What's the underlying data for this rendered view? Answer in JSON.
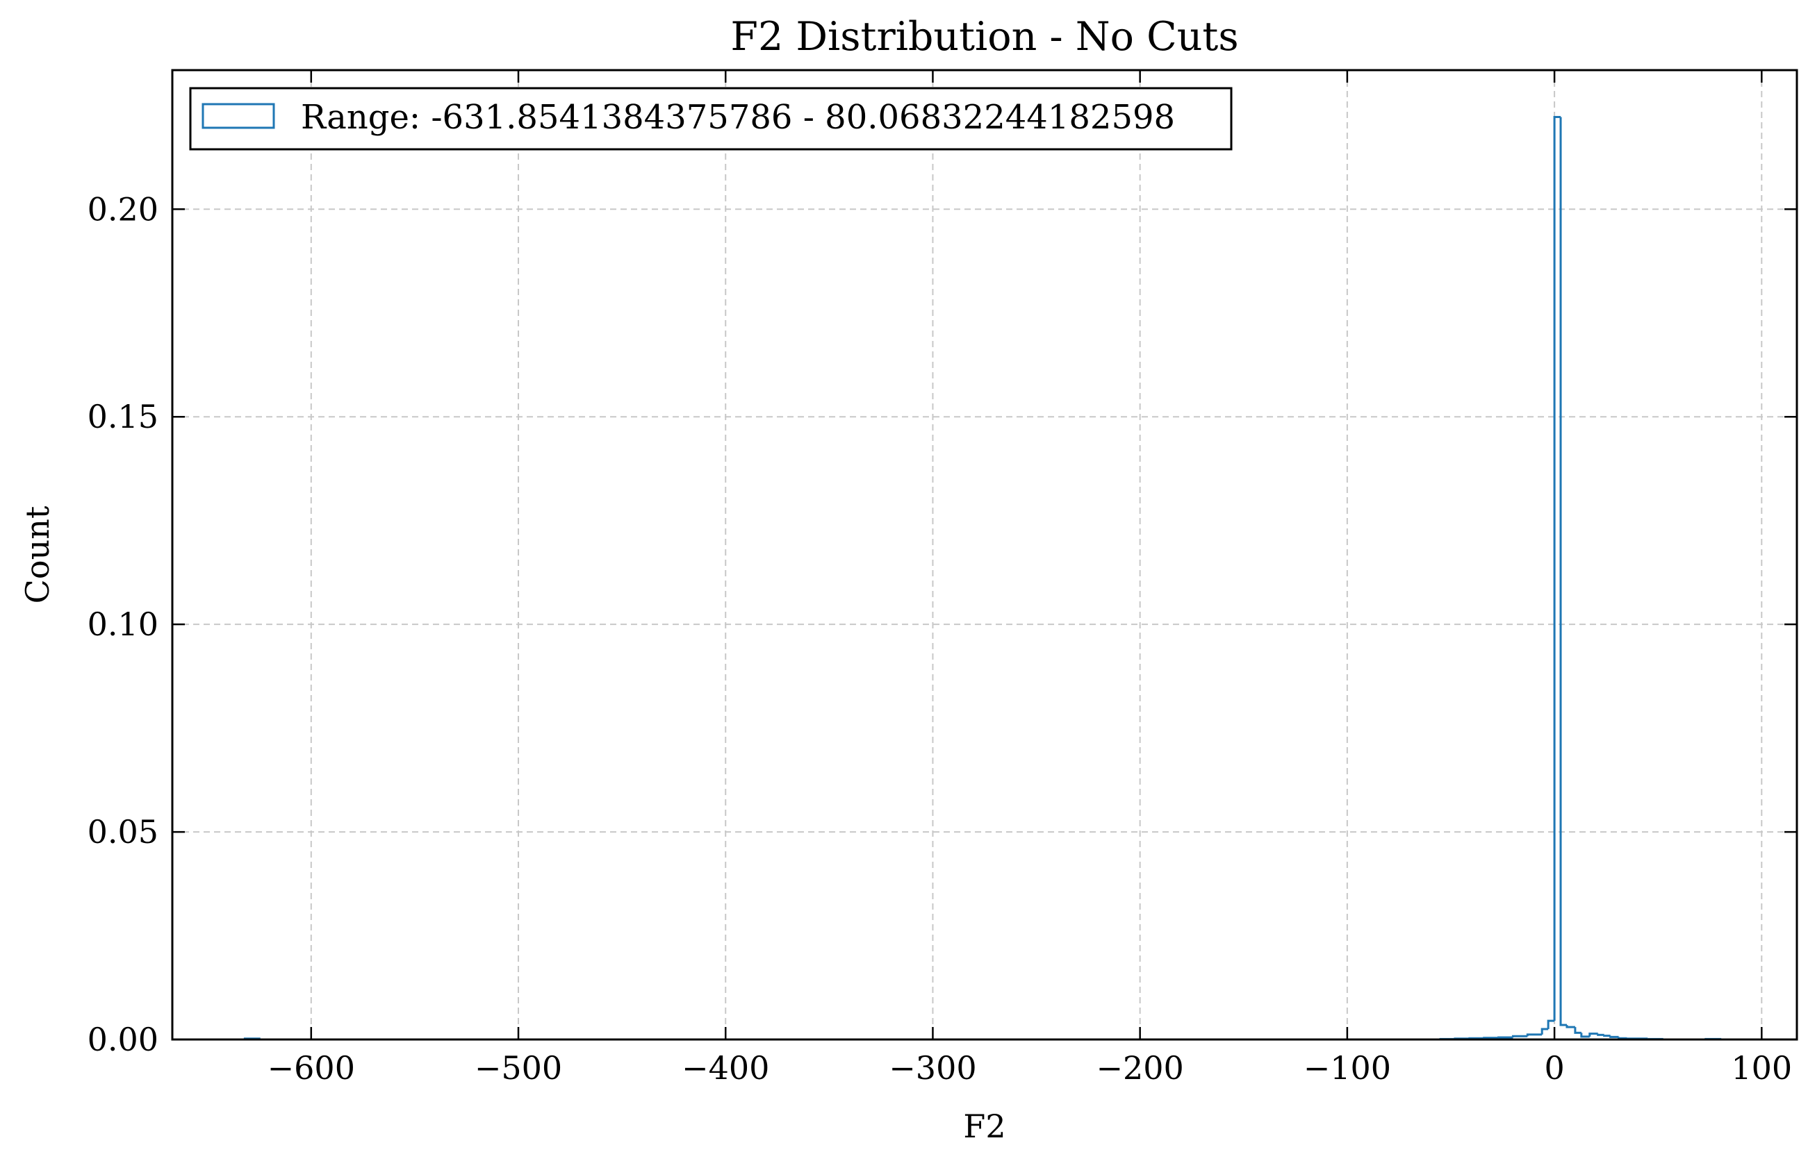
{
  "chart_data": {
    "type": "bar",
    "histtype": "step",
    "title": "F2 Distribution - No Cuts",
    "xlabel": "F2",
    "ylabel": "Count",
    "xlim": [
      -667,
      117
    ],
    "ylim": [
      0,
      0.2335
    ],
    "xticks": [
      -600,
      -500,
      -400,
      -300,
      -200,
      -100,
      0,
      100
    ],
    "xtick_labels": [
      "−600",
      "−500",
      "−400",
      "−300",
      "−200",
      "−100",
      "0",
      "100"
    ],
    "yticks": [
      0.0,
      0.05,
      0.1,
      0.15,
      0.2
    ],
    "ytick_labels": [
      "0.00",
      "0.05",
      "0.10",
      "0.15",
      "0.20"
    ],
    "grid": true,
    "grid_style": "dashed",
    "legend_position": "top-left",
    "series": [
      {
        "name": "Range: -631.8541384375786 - 80.06832244182598",
        "color": "#1f77b4",
        "bin_edges": [
          -55,
          -48,
          -41,
          -34,
          -27,
          -20,
          -13,
          -6,
          -3,
          0,
          3,
          6,
          10,
          13,
          17,
          21,
          24,
          27,
          31,
          35,
          45,
          52
        ],
        "values": [
          0.0001,
          0.0002,
          0.0003,
          0.0004,
          0.0005,
          0.0008,
          0.0012,
          0.0025,
          0.0045,
          0.2222,
          0.0035,
          0.003,
          0.0016,
          0.0007,
          0.0014,
          0.0011,
          0.0009,
          0.0006,
          0.0003,
          0.0002,
          0.0001
        ],
        "outliers": [
          {
            "x0": -632,
            "x1": -625,
            "value": 0.0002
          },
          {
            "x0": 73,
            "x1": 80,
            "value": 0.0001
          }
        ]
      }
    ]
  }
}
